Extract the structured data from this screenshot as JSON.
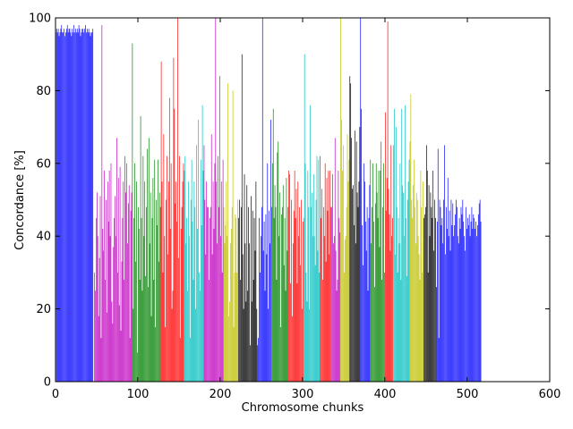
{
  "chart_data": {
    "type": "bar",
    "xlabel": "Chromosome chunks",
    "ylabel": "Concordance [%]",
    "xlim": [
      0,
      600
    ],
    "ylim": [
      0,
      100
    ],
    "xticks": [
      "0",
      "100",
      "200",
      "300",
      "400",
      "500",
      "600"
    ],
    "yticks": [
      "0",
      "20",
      "40",
      "60",
      "80",
      "100"
    ],
    "grid": false,
    "bar_width": 1,
    "color_cycle": [
      "#0000ff",
      "#bf00bf",
      "#008000",
      "#ff0000",
      "#00bfbf",
      "#bf00bf",
      "#bfbf00",
      "#000000",
      "#0000ff",
      "#008000",
      "#ff0000",
      "#00bfbf",
      "#ff0000",
      "#bf00bf",
      "#bfbf00",
      "#000000",
      "#0000ff",
      "#008000",
      "#ff0000",
      "#00bfbf",
      "#bfbf00",
      "#000000",
      "#0000ff"
    ],
    "series": [
      {
        "x_start": 0,
        "values": [
          96,
          97,
          96,
          97,
          95,
          96,
          97,
          98,
          96,
          96,
          97,
          95,
          96,
          97,
          98,
          96,
          97,
          97,
          96,
          95,
          97,
          96,
          98,
          96,
          97,
          96,
          97,
          96,
          98,
          97,
          95,
          96,
          97,
          97,
          96,
          97,
          98,
          96,
          97,
          96,
          97,
          96,
          95,
          96,
          96,
          97
        ]
      },
      {
        "x_start": 47,
        "values": [
          30,
          25,
          45,
          52,
          40,
          18,
          34,
          51,
          12,
          98,
          42,
          36,
          58,
          28,
          50,
          19,
          55,
          44,
          58,
          40,
          60,
          22,
          16,
          37,
          45,
          51,
          40,
          67,
          30,
          56,
          21,
          59,
          14,
          33,
          45,
          55,
          28,
          62,
          52,
          60,
          38,
          49,
          54,
          12,
          47,
          52
        ]
      },
      {
        "x_start": 93,
        "values": [
          93,
          20,
          45,
          60,
          33,
          55,
          8,
          48,
          42,
          28,
          73,
          45,
          25,
          62,
          40,
          55,
          29,
          48,
          64,
          26,
          67,
          38,
          52,
          18,
          45,
          56,
          28,
          61,
          15,
          50,
          43,
          61,
          33,
          52
        ]
      },
      {
        "x_start": 127,
        "values": [
          48,
          88,
          55,
          30,
          68,
          40,
          15,
          50,
          62,
          35,
          55,
          78,
          42,
          60,
          20,
          25,
          89,
          75,
          49,
          55,
          44,
          100,
          34,
          62,
          12,
          42,
          48,
          55,
          60
        ]
      },
      {
        "x_start": 156,
        "values": [
          58,
          62,
          38,
          45,
          25,
          55,
          40,
          12,
          50,
          61,
          44,
          28,
          55,
          48,
          20,
          65,
          42,
          72,
          30,
          25,
          61,
          43,
          76,
          58
        ]
      },
      {
        "x_start": 180,
        "values": [
          65,
          50,
          35,
          55,
          48,
          48,
          28,
          45,
          48,
          68,
          35,
          55,
          42,
          60,
          100,
          55,
          38,
          62,
          48,
          84,
          40,
          55,
          30,
          61
        ]
      },
      {
        "x_start": 204,
        "values": [
          48,
          38,
          43,
          55,
          40,
          82,
          18,
          22,
          38,
          42,
          48,
          80,
          15,
          30,
          46,
          45,
          30,
          50
        ]
      },
      {
        "x_start": 222,
        "values": [
          45,
          50,
          28,
          48,
          90,
          35,
          20,
          57,
          38,
          22,
          54,
          25,
          48,
          38,
          10,
          51,
          22,
          47,
          28,
          45,
          36,
          55,
          20
        ]
      },
      {
        "x_start": 245,
        "values": [
          10,
          12,
          45,
          30,
          40,
          48,
          100,
          36,
          44,
          25,
          46,
          35,
          60,
          20,
          47,
          38,
          72
        ]
      },
      {
        "x_start": 262,
        "values": [
          48,
          60,
          75,
          45,
          54,
          48,
          28,
          63,
          66,
          40,
          52,
          15,
          46,
          48,
          54,
          32,
          45,
          25,
          56,
          36
        ]
      },
      {
        "x_start": 282,
        "values": [
          48,
          58,
          57,
          27,
          50,
          18,
          38,
          47,
          58,
          45,
          53,
          27,
          55,
          40,
          48,
          32,
          50,
          20,
          44
        ]
      },
      {
        "x_start": 301,
        "values": [
          45,
          90,
          60,
          30,
          22,
          58,
          48,
          20,
          76,
          48,
          52,
          40,
          57,
          40,
          32,
          50,
          62,
          36,
          61,
          30
        ]
      },
      {
        "x_start": 321,
        "values": [
          62,
          45,
          53,
          28,
          48,
          40,
          60,
          33,
          56,
          47,
          58,
          35,
          58,
          48
        ]
      },
      {
        "x_start": 335,
        "values": [
          48,
          57,
          38,
          40,
          67,
          36,
          25,
          28,
          58,
          45,
          41
        ]
      },
      {
        "x_start": 346,
        "values": [
          100,
          72,
          58,
          65,
          30,
          39,
          40,
          48,
          68,
          55,
          61
        ]
      },
      {
        "x_start": 357,
        "values": [
          84,
          82,
          67,
          53,
          54,
          43,
          69,
          38,
          66,
          52,
          48,
          55,
          70
        ]
      },
      {
        "x_start": 370,
        "values": [
          100,
          75,
          43,
          32,
          60,
          55,
          44,
          36,
          48,
          25,
          45,
          54
        ]
      },
      {
        "x_start": 382,
        "values": [
          61,
          38,
          48,
          60,
          44,
          26,
          49,
          60,
          52,
          45,
          58,
          37,
          58,
          66,
          28,
          48,
          60,
          30
        ]
      },
      {
        "x_start": 400,
        "values": [
          74,
          47,
          56,
          99,
          53,
          46,
          36,
          65,
          40,
          45
        ]
      },
      {
        "x_start": 410,
        "values": [
          65,
          75,
          35,
          70,
          48,
          30,
          45,
          38,
          60,
          28,
          75,
          54,
          52,
          40,
          76,
          45,
          29,
          50,
          55,
          61
        ]
      },
      {
        "x_start": 430,
        "values": [
          66,
          79,
          50,
          45,
          54,
          61,
          48,
          38,
          52,
          50,
          40,
          35,
          28,
          58,
          48,
          30,
          55
        ]
      },
      {
        "x_start": 447,
        "values": [
          45,
          46,
          48,
          65,
          58,
          30,
          54,
          40,
          52,
          48,
          45,
          58,
          36,
          50,
          45,
          26
        ]
      },
      {
        "x_start": 463,
        "values": [
          44,
          64,
          12,
          50,
          48,
          43,
          45,
          38,
          50,
          65,
          35,
          48,
          42,
          56,
          40,
          47,
          36,
          50,
          43,
          49,
          40,
          43,
          46,
          50,
          48,
          40,
          38,
          45,
          42,
          48,
          46,
          50,
          44,
          40,
          36,
          48,
          42,
          45,
          43,
          46,
          40,
          44,
          48,
          42,
          46,
          45,
          42,
          44,
          40,
          43,
          46,
          49,
          50,
          44
        ]
      }
    ]
  }
}
